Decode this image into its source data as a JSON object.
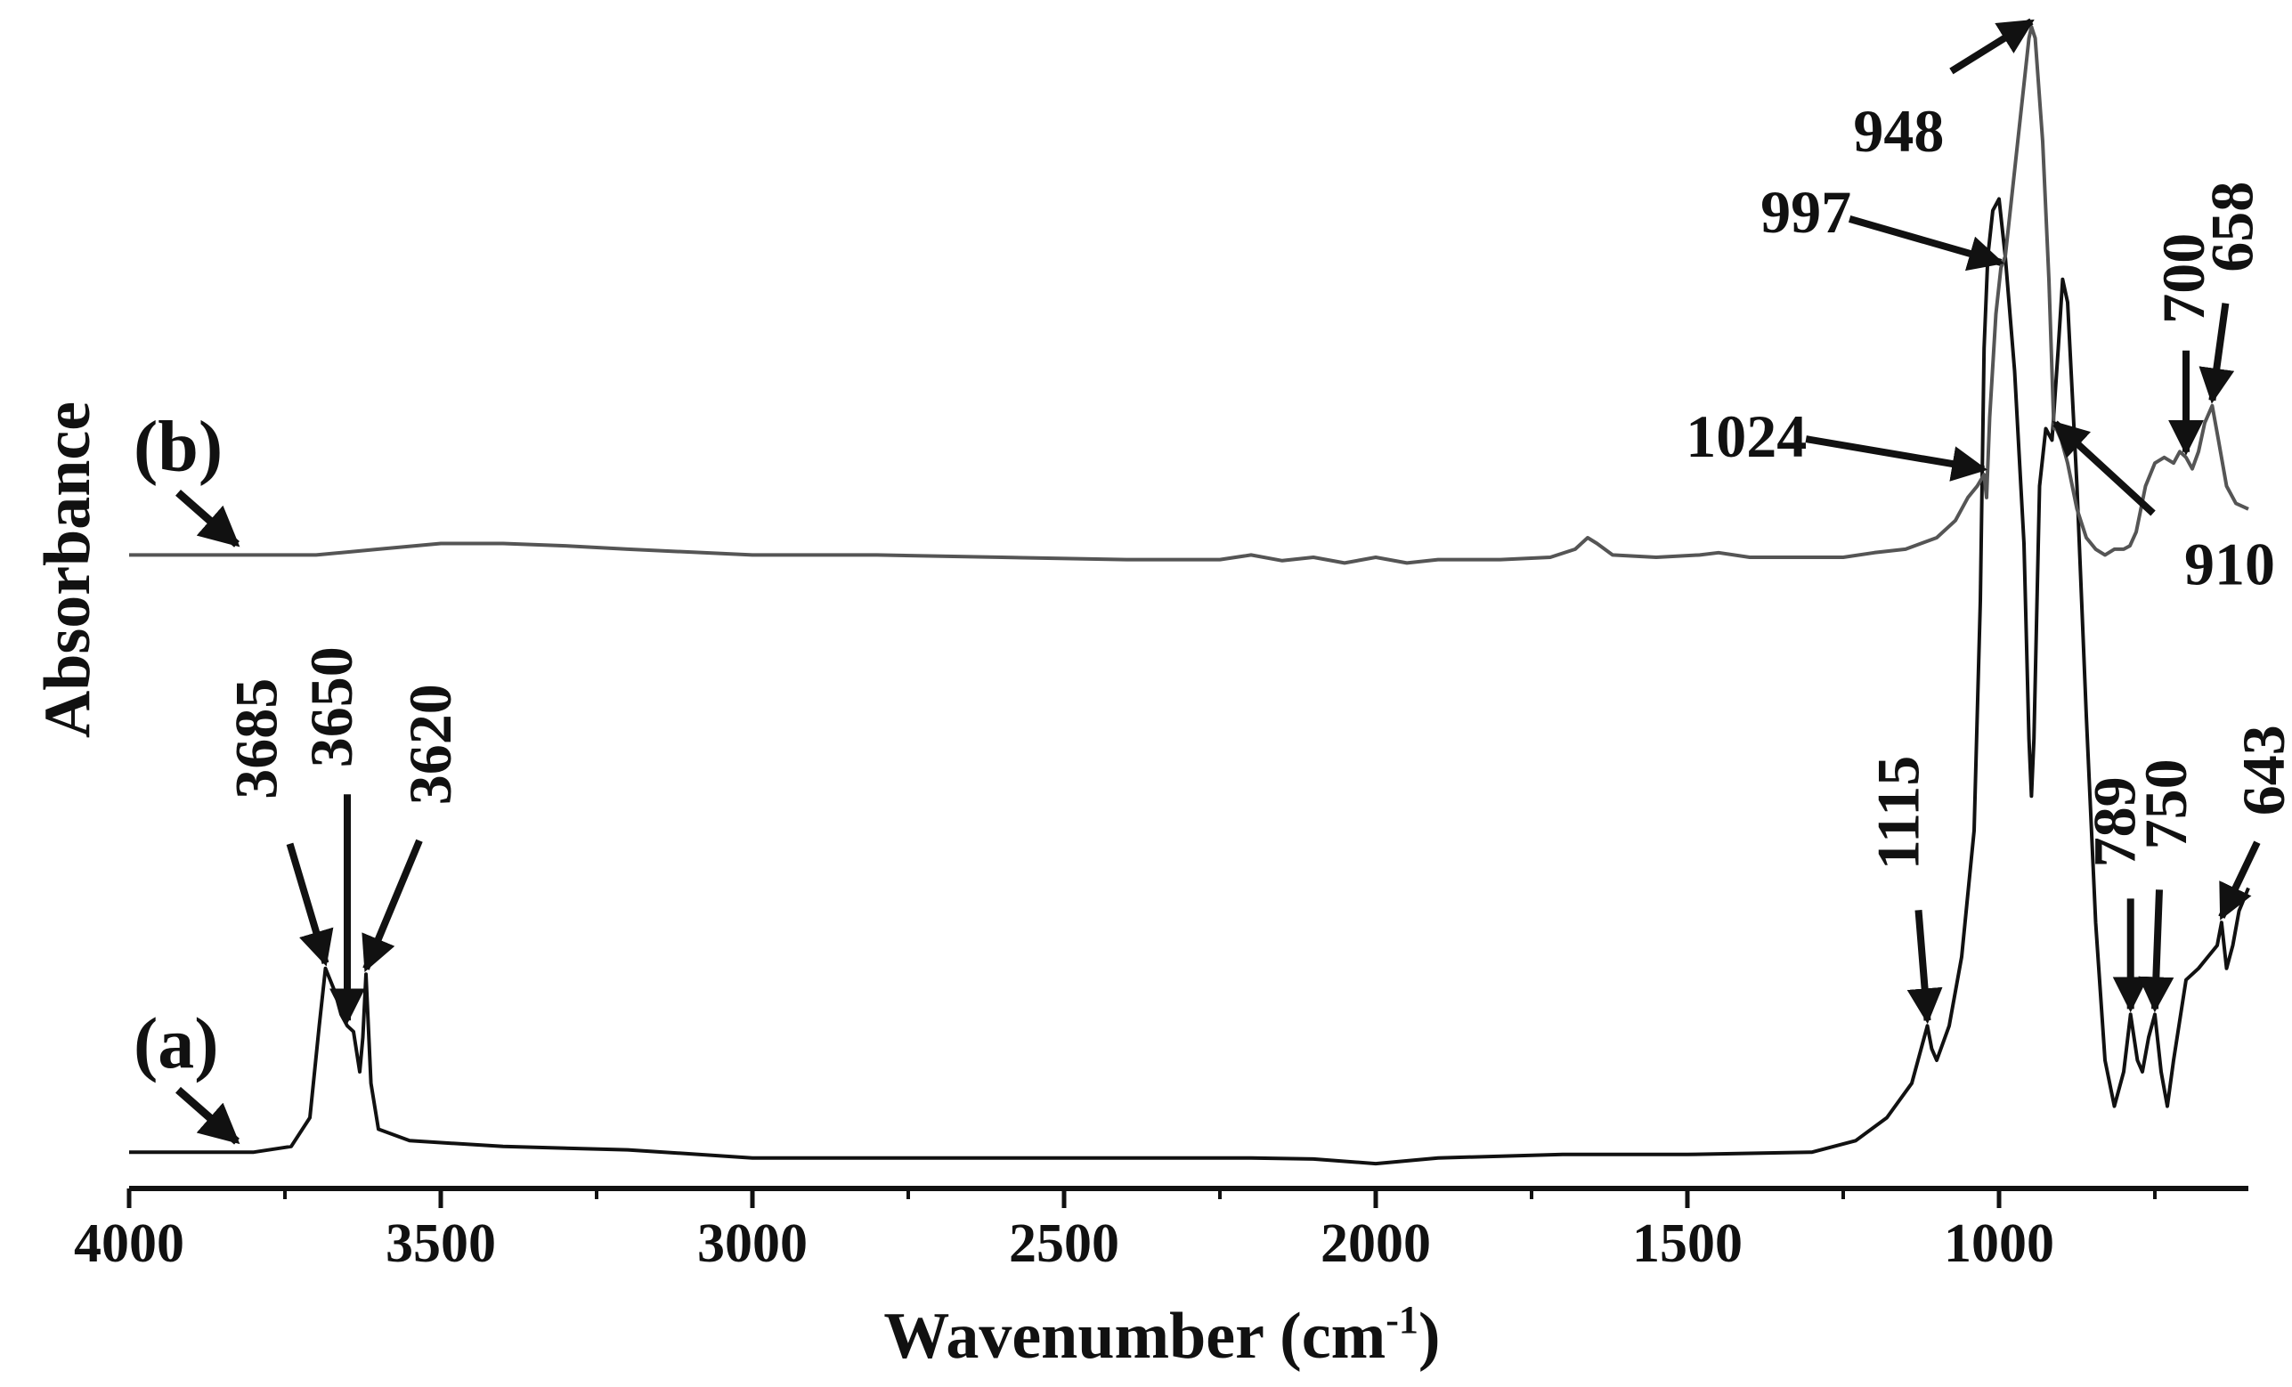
{
  "chart_data": {
    "type": "line",
    "title": "",
    "xlabel": "Wavenumber (cm",
    "xlabel_sup": "-1",
    "xlabel_close": ")",
    "ylabel": "Absorbance",
    "xlim": [
      4000,
      600
    ],
    "x_reversed": true,
    "ylim": [
      0,
      1
    ],
    "grid": false,
    "x_ticks": [
      4000,
      3500,
      3000,
      2500,
      2000,
      1500,
      1000
    ],
    "colors": {
      "line": "#111111",
      "axis": "#111111"
    },
    "series": [
      {
        "name": "(a)",
        "label_text": "(a)",
        "label_x": 3820,
        "points": [
          [
            4000,
            0.02
          ],
          [
            3800,
            0.02
          ],
          [
            3740,
            0.025
          ],
          [
            3710,
            0.05
          ],
          [
            3695,
            0.13
          ],
          [
            3685,
            0.18
          ],
          [
            3670,
            0.16
          ],
          [
            3660,
            0.14
          ],
          [
            3650,
            0.13
          ],
          [
            3640,
            0.125
          ],
          [
            3630,
            0.09
          ],
          [
            3625,
            0.12
          ],
          [
            3620,
            0.175
          ],
          [
            3612,
            0.08
          ],
          [
            3600,
            0.04
          ],
          [
            3550,
            0.03
          ],
          [
            3400,
            0.025
          ],
          [
            3200,
            0.022
          ],
          [
            3000,
            0.015
          ],
          [
            2800,
            0.015
          ],
          [
            2600,
            0.015
          ],
          [
            2400,
            0.015
          ],
          [
            2200,
            0.015
          ],
          [
            2100,
            0.014
          ],
          [
            2000,
            0.01
          ],
          [
            1900,
            0.015
          ],
          [
            1700,
            0.018
          ],
          [
            1500,
            0.018
          ],
          [
            1300,
            0.02
          ],
          [
            1230,
            0.03
          ],
          [
            1180,
            0.05
          ],
          [
            1140,
            0.08
          ],
          [
            1130,
            0.1
          ],
          [
            1120,
            0.12
          ],
          [
            1115,
            0.13
          ],
          [
            1108,
            0.11
          ],
          [
            1100,
            0.1
          ],
          [
            1080,
            0.13
          ],
          [
            1060,
            0.19
          ],
          [
            1040,
            0.3
          ],
          [
            1030,
            0.5
          ],
          [
            1024,
            0.72
          ],
          [
            1018,
            0.8
          ],
          [
            1010,
            0.84
          ],
          [
            1000,
            0.85
          ],
          [
            990,
            0.8
          ],
          [
            975,
            0.7
          ],
          [
            960,
            0.55
          ],
          [
            952,
            0.38
          ],
          [
            948,
            0.33
          ],
          [
            944,
            0.38
          ],
          [
            935,
            0.6
          ],
          [
            925,
            0.65
          ],
          [
            915,
            0.64
          ],
          [
            905,
            0.72
          ],
          [
            898,
            0.78
          ],
          [
            890,
            0.76
          ],
          [
            875,
            0.6
          ],
          [
            860,
            0.4
          ],
          [
            845,
            0.22
          ],
          [
            830,
            0.1
          ],
          [
            815,
            0.06
          ],
          [
            800,
            0.09
          ],
          [
            789,
            0.14
          ],
          [
            778,
            0.1
          ],
          [
            770,
            0.09
          ],
          [
            760,
            0.12
          ],
          [
            750,
            0.14
          ],
          [
            740,
            0.09
          ],
          [
            730,
            0.06
          ],
          [
            720,
            0.1
          ],
          [
            700,
            0.17
          ],
          [
            680,
            0.18
          ],
          [
            665,
            0.19
          ],
          [
            650,
            0.2
          ],
          [
            643,
            0.22
          ],
          [
            635,
            0.18
          ],
          [
            625,
            0.2
          ],
          [
            615,
            0.23
          ],
          [
            600,
            0.25
          ]
        ]
      },
      {
        "name": "(b)",
        "label_text": "(b)",
        "label_x": 3820,
        "points": [
          [
            4000,
            0.54
          ],
          [
            3900,
            0.54
          ],
          [
            3800,
            0.54
          ],
          [
            3700,
            0.54
          ],
          [
            3600,
            0.545
          ],
          [
            3500,
            0.55
          ],
          [
            3400,
            0.55
          ],
          [
            3300,
            0.548
          ],
          [
            3200,
            0.545
          ],
          [
            3000,
            0.54
          ],
          [
            2800,
            0.54
          ],
          [
            2600,
            0.538
          ],
          [
            2400,
            0.536
          ],
          [
            2250,
            0.536
          ],
          [
            2200,
            0.54
          ],
          [
            2150,
            0.535
          ],
          [
            2100,
            0.538
          ],
          [
            2050,
            0.533
          ],
          [
            2000,
            0.538
          ],
          [
            1950,
            0.533
          ],
          [
            1900,
            0.536
          ],
          [
            1800,
            0.536
          ],
          [
            1720,
            0.538
          ],
          [
            1680,
            0.545
          ],
          [
            1660,
            0.555
          ],
          [
            1645,
            0.55
          ],
          [
            1620,
            0.54
          ],
          [
            1550,
            0.538
          ],
          [
            1480,
            0.54
          ],
          [
            1450,
            0.542
          ],
          [
            1400,
            0.538
          ],
          [
            1250,
            0.538
          ],
          [
            1200,
            0.542
          ],
          [
            1150,
            0.545
          ],
          [
            1100,
            0.555
          ],
          [
            1070,
            0.57
          ],
          [
            1050,
            0.59
          ],
          [
            1035,
            0.6
          ],
          [
            1024,
            0.61
          ],
          [
            1020,
            0.59
          ],
          [
            1015,
            0.66
          ],
          [
            1005,
            0.75
          ],
          [
            997,
            0.79
          ],
          [
            990,
            0.8
          ],
          [
            980,
            0.85
          ],
          [
            970,
            0.9
          ],
          [
            960,
            0.95
          ],
          [
            952,
            0.99
          ],
          [
            948,
            1.0
          ],
          [
            942,
            0.99
          ],
          [
            930,
            0.9
          ],
          [
            920,
            0.78
          ],
          [
            912,
            0.65
          ],
          [
            908,
            0.65
          ],
          [
            900,
            0.64
          ],
          [
            890,
            0.62
          ],
          [
            875,
            0.58
          ],
          [
            860,
            0.555
          ],
          [
            845,
            0.545
          ],
          [
            830,
            0.54
          ],
          [
            815,
            0.545
          ],
          [
            800,
            0.545
          ],
          [
            790,
            0.548
          ],
          [
            780,
            0.56
          ],
          [
            765,
            0.6
          ],
          [
            750,
            0.62
          ],
          [
            735,
            0.625
          ],
          [
            720,
            0.62
          ],
          [
            710,
            0.63
          ],
          [
            700,
            0.625
          ],
          [
            690,
            0.615
          ],
          [
            680,
            0.63
          ],
          [
            670,
            0.655
          ],
          [
            658,
            0.67
          ],
          [
            648,
            0.64
          ],
          [
            635,
            0.6
          ],
          [
            620,
            0.585
          ],
          [
            600,
            0.58
          ]
        ]
      }
    ],
    "annotations": [
      {
        "text": "3685",
        "series": 0,
        "x": 3685
      },
      {
        "text": "3650",
        "series": 0,
        "x": 3650
      },
      {
        "text": "3620",
        "series": 0,
        "x": 3620
      },
      {
        "text": "1115",
        "series": 0,
        "x": 1115
      },
      {
        "text": "789",
        "series": 0,
        "x": 789
      },
      {
        "text": "750",
        "series": 0,
        "x": 750
      },
      {
        "text": "643",
        "series": 0,
        "x": 643
      },
      {
        "text": "948",
        "series": 1,
        "x": 948
      },
      {
        "text": "997",
        "series": 1,
        "x": 997
      },
      {
        "text": "1024",
        "series": 1,
        "x": 1024
      },
      {
        "text": "910",
        "series": 1,
        "x": 910
      },
      {
        "text": "700",
        "series": 1,
        "x": 700
      },
      {
        "text": "658",
        "series": 1,
        "x": 658
      }
    ]
  }
}
